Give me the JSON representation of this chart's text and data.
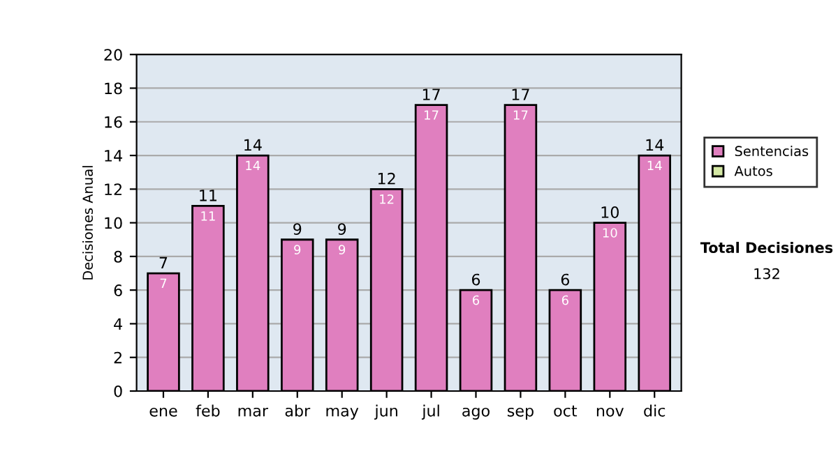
{
  "chart_data": {
    "type": "bar",
    "stacked": true,
    "ylabel": "Decisiones Anual",
    "categories": [
      "ene",
      "feb",
      "mar",
      "abr",
      "may",
      "jun",
      "jul",
      "ago",
      "sep",
      "oct",
      "nov",
      "dic"
    ],
    "series": [
      {
        "name": "Sentencias",
        "color": "#e07fbf",
        "values": [
          7,
          11,
          14,
          9,
          9,
          12,
          17,
          6,
          17,
          6,
          10,
          14
        ],
        "value_labels": [
          "7",
          "11",
          "14",
          "9",
          "9",
          "12",
          "17",
          "6",
          "17",
          "6",
          "10",
          "14"
        ]
      },
      {
        "name": "Autos",
        "color": "#d4e8a4",
        "values": [
          0,
          0,
          0,
          0,
          0,
          0,
          0,
          0,
          0,
          0,
          0,
          0
        ]
      }
    ],
    "totals": [
      "7",
      "11",
      "14",
      "9",
      "9",
      "12",
      "17",
      "6",
      "17",
      "6",
      "10",
      "14"
    ],
    "ylim": [
      0,
      20
    ],
    "yticks": [
      0,
      2,
      4,
      6,
      8,
      10,
      12,
      14,
      16,
      18,
      20
    ],
    "grid": "y",
    "legend": "right",
    "annotations": [
      "Total Decisiones",
      "132"
    ]
  }
}
